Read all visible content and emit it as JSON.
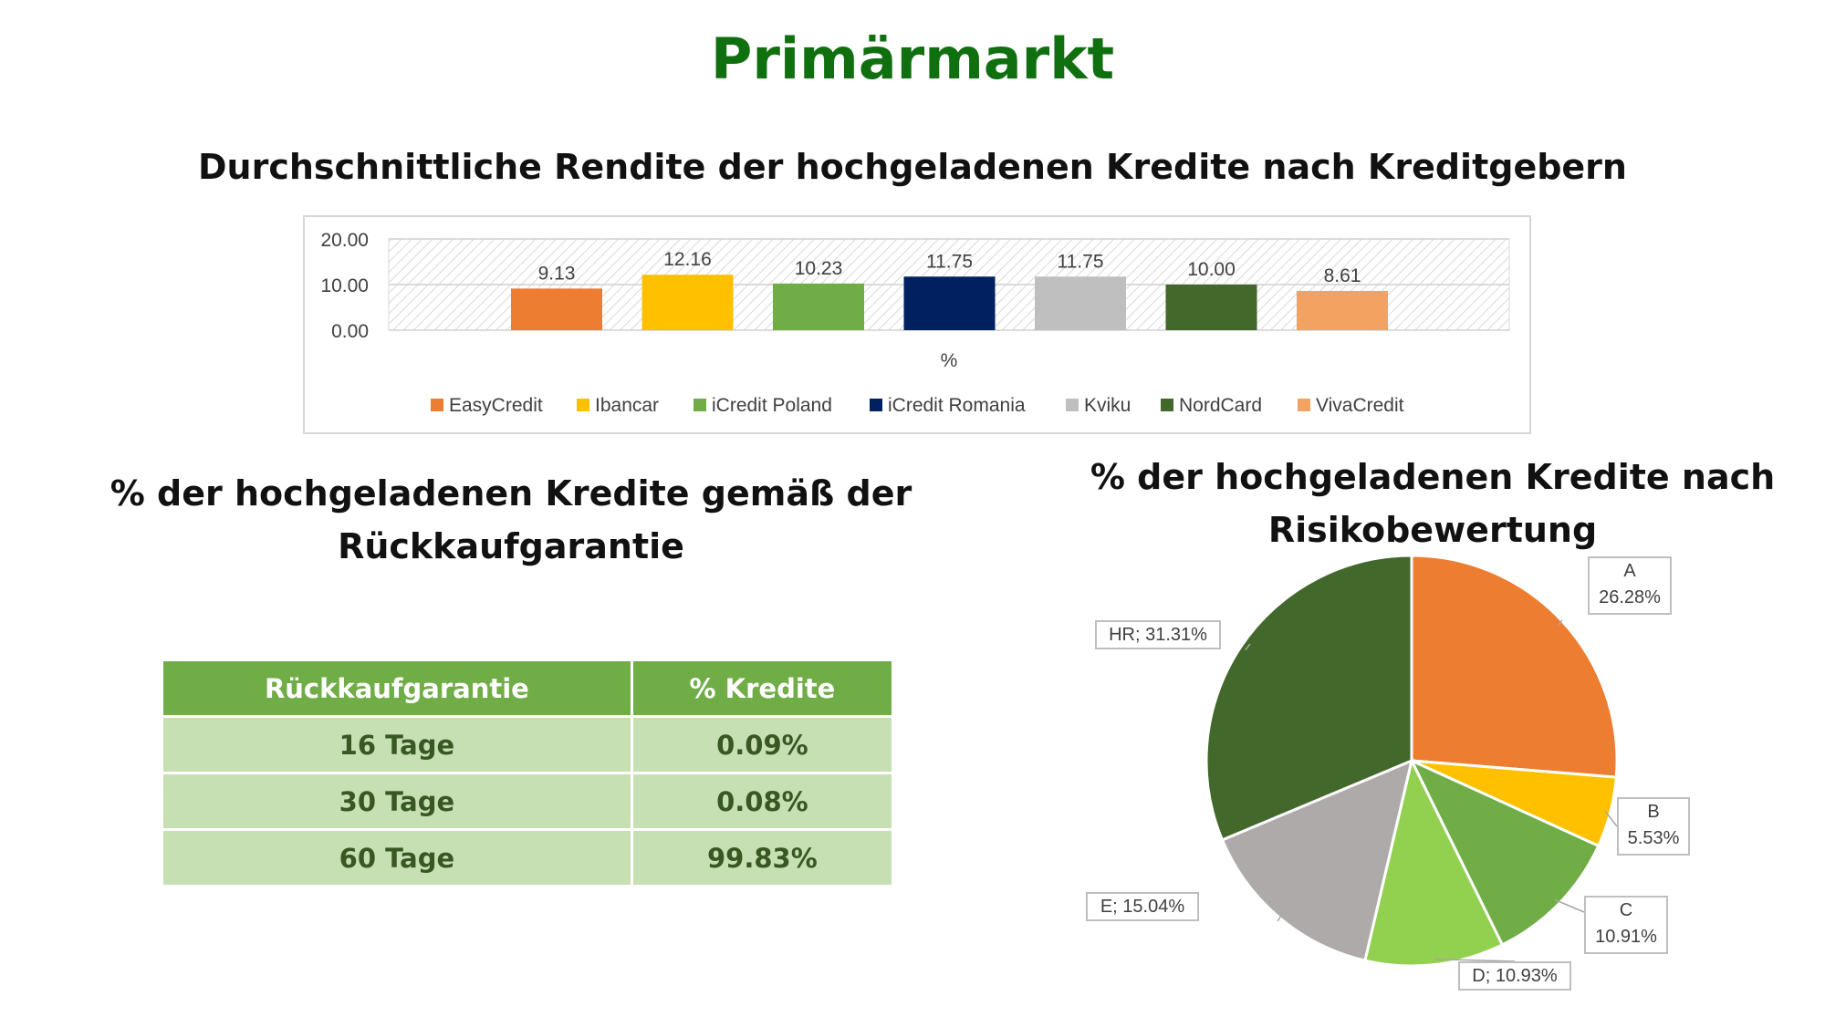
{
  "page": {
    "title": "Primärmarkt"
  },
  "bar_section": {
    "title": "Durchschnittliche Rendite der hochgeladenen Kredite nach Kreditgebern"
  },
  "table_section": {
    "title_line1": "% der hochgeladenen Kredite gemäß der",
    "title_line2": "Rückkaufgarantie",
    "headers": [
      "Rückkaufgarantie",
      "% Kredite"
    ],
    "rows": [
      [
        "16 Tage",
        "0.09%"
      ],
      [
        "30 Tage",
        "0.08%"
      ],
      [
        "60 Tage",
        "99.83%"
      ]
    ]
  },
  "pie_section": {
    "title_line1": "% der hochgeladenen Kredite nach",
    "title_line2": "Risikobewertung"
  },
  "chart_data": [
    {
      "type": "bar",
      "title": "Durchschnittliche Rendite der hochgeladenen Kredite nach Kreditgebern",
      "xlabel": "%",
      "ylabel": "",
      "ylim": [
        0,
        20
      ],
      "yticks": [
        "20.00",
        "10.00",
        "0.00"
      ],
      "grid": "hatched background",
      "legend_position": "bottom",
      "series": [
        {
          "name": "EasyCredit",
          "value": 9.13,
          "label": "9.13",
          "color": "#ed7d31"
        },
        {
          "name": "Ibancar",
          "value": 12.16,
          "label": "12.16",
          "color": "#ffc000"
        },
        {
          "name": "iCredit Poland",
          "value": 10.23,
          "label": "10.23",
          "color": "#70ad47"
        },
        {
          "name": "iCredit Romania",
          "value": 11.75,
          "label": "11.75",
          "color": "#002060"
        },
        {
          "name": "Kviku",
          "value": 11.75,
          "label": "11.75",
          "color": "#bfbfbf"
        },
        {
          "name": "NordCard",
          "value": 10.0,
          "label": "10.00",
          "color": "#43682b"
        },
        {
          "name": "VivaCredit",
          "value": 8.61,
          "label": "8.61",
          "color": "#f4a261"
        }
      ]
    },
    {
      "type": "pie",
      "title": "% der hochgeladenen Kredite nach Risikobewertung",
      "slices": [
        {
          "name": "A",
          "value": 26.28,
          "label": "26.28%",
          "color": "#ed7d31"
        },
        {
          "name": "B",
          "value": 5.53,
          "label": "5.53%",
          "color": "#ffc000"
        },
        {
          "name": "C",
          "value": 10.91,
          "label": "10.91%",
          "color": "#70ad47"
        },
        {
          "name": "D",
          "value": 10.93,
          "label": "10.93%",
          "color": "#92d050"
        },
        {
          "name": "E",
          "value": 15.04,
          "label": "15.04%",
          "color": "#aeaaaa"
        },
        {
          "name": "HR",
          "value": 31.31,
          "label": "31.31%",
          "color": "#43682b"
        }
      ]
    }
  ]
}
